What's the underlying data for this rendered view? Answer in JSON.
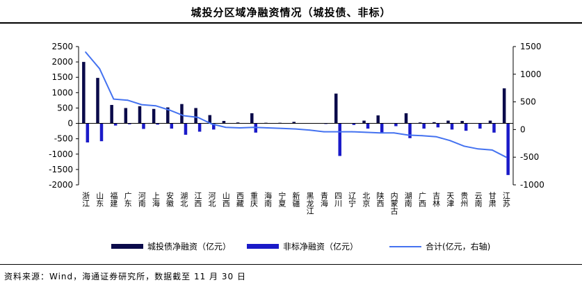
{
  "title": "城投分区域净融资情况（城投债、非标）",
  "source": "资料来源：Wind，海通证券研究所，数据截至 11 月 30 日",
  "colors": {
    "bond": "#0a0a4a",
    "nonstd": "#1a1ac8",
    "total": "#4472f0",
    "axis": "#000000"
  },
  "chart_data": {
    "type": "bar",
    "categories": [
      "浙江",
      "山东",
      "福建",
      "广东",
      "河南",
      "上海",
      "安徽",
      "湖北",
      "江西",
      "河北",
      "山西",
      "西藏",
      "重庆",
      "海南",
      "宁夏",
      "新疆",
      "黑龙江",
      "青海",
      "四川",
      "辽宁",
      "北京",
      "陕西",
      "内蒙古",
      "湖南",
      "广西",
      "吉林",
      "天津",
      "贵州",
      "云南",
      "甘肃",
      "江苏"
    ],
    "series": [
      {
        "name": "城投债净融资（亿元）",
        "axis": "left",
        "chart": "bar",
        "values": [
          2000,
          1480,
          600,
          500,
          560,
          470,
          520,
          630,
          500,
          270,
          80,
          30,
          330,
          20,
          20,
          50,
          10,
          0,
          970,
          0,
          90,
          260,
          0,
          330,
          30,
          40,
          90,
          80,
          0,
          90,
          1140
        ]
      },
      {
        "name": "非标净融资（亿元）",
        "axis": "left",
        "chart": "bar",
        "values": [
          -620,
          -580,
          -70,
          -30,
          -180,
          -40,
          -170,
          -370,
          -270,
          -200,
          0,
          0,
          -300,
          0,
          0,
          0,
          0,
          -20,
          -1060,
          -50,
          -170,
          -310,
          -90,
          -480,
          -170,
          -130,
          -200,
          -240,
          -170,
          -300,
          -1680
        ]
      },
      {
        "name": "合计(亿元，右轴)",
        "axis": "right",
        "chart": "line",
        "values": [
          1400,
          1100,
          550,
          530,
          450,
          430,
          350,
          250,
          220,
          100,
          40,
          30,
          40,
          30,
          20,
          10,
          -10,
          -40,
          -40,
          -40,
          -50,
          -60,
          -60,
          -100,
          -110,
          -130,
          -200,
          -300,
          -350,
          -370,
          -500
        ]
      }
    ],
    "y_left": {
      "ylim": [
        -2000,
        2500
      ],
      "ticks": [
        2500,
        2000,
        1500,
        1000,
        500,
        0,
        -500,
        -1000,
        -1500,
        -2000
      ]
    },
    "y_right": {
      "ylim": [
        -1000,
        1500
      ],
      "ticks": [
        1500,
        1000,
        500,
        0,
        -500,
        -1000
      ]
    },
    "xlabel": "",
    "ylabel": "",
    "grid": false,
    "legend_position": "bottom"
  }
}
